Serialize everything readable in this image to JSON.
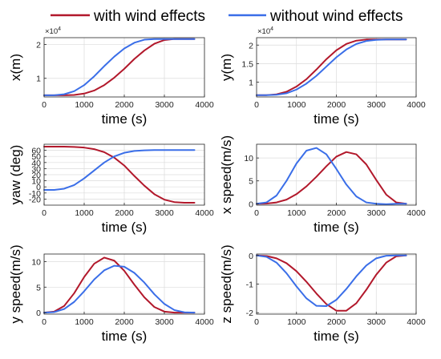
{
  "legend": [
    {
      "label": "with wind effects",
      "color": "#b2182b"
    },
    {
      "label": "without wind effects",
      "color": "#3a6ee8"
    }
  ],
  "chart_data": [
    {
      "id": "x",
      "type": "line",
      "ylabel": "x(m)",
      "xlabel": "time (s)",
      "exponent_label": "×10",
      "exponent_power": "4",
      "xlim": [
        0,
        4000
      ],
      "xticks": [
        0,
        1000,
        2000,
        3000,
        4000
      ],
      "ylim": [
        0.45,
        2.2
      ],
      "yticks": [
        1,
        2
      ],
      "grid": true,
      "series": [
        {
          "name": "with wind effects",
          "color": "#b2182b",
          "x": [
            0,
            250,
            500,
            750,
            1000,
            1250,
            1500,
            1750,
            2000,
            2250,
            2500,
            2750,
            3000,
            3250,
            3500,
            3750
          ],
          "y": [
            0.5,
            0.5,
            0.5,
            0.51,
            0.55,
            0.64,
            0.8,
            1.02,
            1.28,
            1.57,
            1.82,
            2.02,
            2.13,
            2.16,
            2.16,
            2.16
          ]
        },
        {
          "name": "without wind effects",
          "color": "#3a6ee8",
          "x": [
            0,
            250,
            500,
            750,
            1000,
            1250,
            1500,
            1750,
            2000,
            2250,
            2500,
            2750,
            3000,
            3250,
            3500,
            3750
          ],
          "y": [
            0.5,
            0.5,
            0.53,
            0.62,
            0.8,
            1.06,
            1.36,
            1.64,
            1.88,
            2.05,
            2.14,
            2.16,
            2.16,
            2.16,
            2.16,
            2.16
          ]
        }
      ]
    },
    {
      "id": "y",
      "type": "line",
      "ylabel": "y(m)",
      "xlabel": "time (s)",
      "exponent_label": "×10",
      "exponent_power": "4",
      "xlim": [
        0,
        4000
      ],
      "xticks": [
        0,
        1000,
        2000,
        3000,
        4000
      ],
      "ylim": [
        0.6,
        2.2
      ],
      "yticks": [
        1,
        1.5,
        2
      ],
      "grid": true,
      "series": [
        {
          "name": "with wind effects",
          "color": "#b2182b",
          "x": [
            0,
            250,
            500,
            750,
            1000,
            1250,
            1500,
            1750,
            2000,
            2250,
            2500,
            2750,
            3000,
            3250,
            3500,
            3750
          ],
          "y": [
            0.65,
            0.65,
            0.67,
            0.74,
            0.88,
            1.08,
            1.34,
            1.62,
            1.86,
            2.03,
            2.12,
            2.15,
            2.15,
            2.15,
            2.15,
            2.15
          ]
        },
        {
          "name": "without wind effects",
          "color": "#3a6ee8",
          "x": [
            0,
            250,
            500,
            750,
            1000,
            1250,
            1500,
            1750,
            2000,
            2250,
            2500,
            2750,
            3000,
            3250,
            3500,
            3750
          ],
          "y": [
            0.65,
            0.65,
            0.66,
            0.7,
            0.8,
            0.96,
            1.17,
            1.42,
            1.67,
            1.88,
            2.03,
            2.11,
            2.14,
            2.15,
            2.15,
            2.15
          ]
        }
      ]
    },
    {
      "id": "yaw",
      "type": "line",
      "ylabel": "yaw (deg)",
      "xlabel": "time (s)",
      "xlim": [
        0,
        4000
      ],
      "xticks": [
        0,
        1000,
        2000,
        3000,
        4000
      ],
      "ylim": [
        -30,
        70
      ],
      "yticks": [
        -20,
        -10,
        0,
        10,
        20,
        30,
        40,
        50,
        60
      ],
      "grid": true,
      "series": [
        {
          "name": "with wind effects",
          "color": "#b2182b",
          "x": [
            0,
            250,
            500,
            750,
            1000,
            1250,
            1500,
            1750,
            2000,
            2250,
            2500,
            2750,
            3000,
            3250,
            3500,
            3750
          ],
          "y": [
            66,
            66,
            66,
            65.5,
            64.5,
            62,
            57,
            48,
            35,
            18,
            2,
            -12,
            -21,
            -25,
            -26,
            -26
          ]
        },
        {
          "name": "without wind effects",
          "color": "#3a6ee8",
          "x": [
            0,
            250,
            500,
            750,
            1000,
            1250,
            1500,
            1750,
            2000,
            2250,
            2500,
            2750,
            3000,
            3250,
            3500,
            3750
          ],
          "y": [
            -5,
            -5,
            -3,
            3,
            14,
            27,
            40,
            50,
            56,
            59,
            60,
            60.5,
            60.5,
            60.5,
            60.5,
            60.5
          ]
        }
      ]
    },
    {
      "id": "xspeed",
      "type": "line",
      "ylabel": "x speed(m/s)",
      "xlabel": "time (s)",
      "xlim": [
        0,
        4000
      ],
      "xticks": [
        0,
        1000,
        2000,
        3000,
        4000
      ],
      "ylim": [
        -0.3,
        13
      ],
      "yticks": [
        0,
        5,
        10
      ],
      "grid": true,
      "series": [
        {
          "name": "with wind effects",
          "color": "#b2182b",
          "x": [
            0,
            250,
            500,
            750,
            1000,
            1250,
            1500,
            1750,
            2000,
            2250,
            2500,
            2750,
            3000,
            3250,
            3500,
            3750
          ],
          "y": [
            0,
            0.05,
            0.3,
            0.9,
            2.1,
            3.8,
            5.9,
            8.2,
            10.3,
            11.3,
            10.8,
            8.6,
            5.2,
            2.0,
            0.3,
            0
          ]
        },
        {
          "name": "without wind effects",
          "color": "#3a6ee8",
          "x": [
            0,
            250,
            500,
            750,
            1000,
            1250,
            1500,
            1750,
            2000,
            2250,
            2500,
            2750,
            3000,
            3250,
            3500,
            3750
          ],
          "y": [
            0,
            0.3,
            1.8,
            5.0,
            8.8,
            11.6,
            12.2,
            10.8,
            7.6,
            4.2,
            1.6,
            0.3,
            0,
            -0.1,
            0,
            0
          ]
        }
      ]
    },
    {
      "id": "yspeed",
      "type": "line",
      "ylabel": "y speed(m/s)",
      "xlabel": "time (s)",
      "xlim": [
        0,
        4000
      ],
      "xticks": [
        0,
        1000,
        2000,
        3000,
        4000
      ],
      "ylim": [
        -0.3,
        11.5
      ],
      "yticks": [
        0,
        5,
        10
      ],
      "grid": true,
      "series": [
        {
          "name": "with wind effects",
          "color": "#b2182b",
          "x": [
            0,
            250,
            500,
            750,
            1000,
            1250,
            1500,
            1750,
            2000,
            2250,
            2500,
            2750,
            3000,
            3250,
            3500,
            3750
          ],
          "y": [
            0,
            0.2,
            1.3,
            3.8,
            7.0,
            9.6,
            10.8,
            10.2,
            8.2,
            5.5,
            3.0,
            1.1,
            0.2,
            0,
            0,
            0
          ]
        },
        {
          "name": "without wind effects",
          "color": "#3a6ee8",
          "x": [
            0,
            250,
            500,
            750,
            1000,
            1250,
            1500,
            1750,
            2000,
            2250,
            2500,
            2750,
            3000,
            3250,
            3500,
            3750
          ],
          "y": [
            0,
            0.1,
            0.7,
            2.1,
            4.2,
            6.5,
            8.3,
            9.2,
            9.0,
            7.8,
            5.9,
            3.6,
            1.7,
            0.5,
            0.05,
            0
          ]
        }
      ]
    },
    {
      "id": "zspeed",
      "type": "line",
      "ylabel": "z speed(m/s)",
      "xlabel": "time (s)",
      "xlim": [
        0,
        4000
      ],
      "xticks": [
        0,
        1000,
        2000,
        3000,
        4000
      ],
      "ylim": [
        -2.05,
        0.05
      ],
      "yticks": [
        -2,
        -1,
        0
      ],
      "grid": true,
      "series": [
        {
          "name": "with wind effects",
          "color": "#b2182b",
          "x": [
            0,
            250,
            500,
            750,
            1000,
            1250,
            1500,
            1750,
            2000,
            2250,
            2500,
            2750,
            3000,
            3250,
            3500,
            3750
          ],
          "y": [
            0,
            -0.02,
            -0.1,
            -0.27,
            -0.55,
            -0.92,
            -1.33,
            -1.7,
            -1.93,
            -1.93,
            -1.67,
            -1.2,
            -0.67,
            -0.25,
            -0.03,
            0
          ]
        },
        {
          "name": "without wind effects",
          "color": "#3a6ee8",
          "x": [
            0,
            250,
            500,
            750,
            1000,
            1250,
            1500,
            1750,
            2000,
            2250,
            2500,
            2750,
            3000,
            3250,
            3500,
            3750
          ],
          "y": [
            0,
            -0.05,
            -0.25,
            -0.62,
            -1.08,
            -1.5,
            -1.76,
            -1.77,
            -1.55,
            -1.17,
            -0.73,
            -0.35,
            -0.1,
            -0.01,
            0,
            0
          ]
        }
      ]
    }
  ]
}
